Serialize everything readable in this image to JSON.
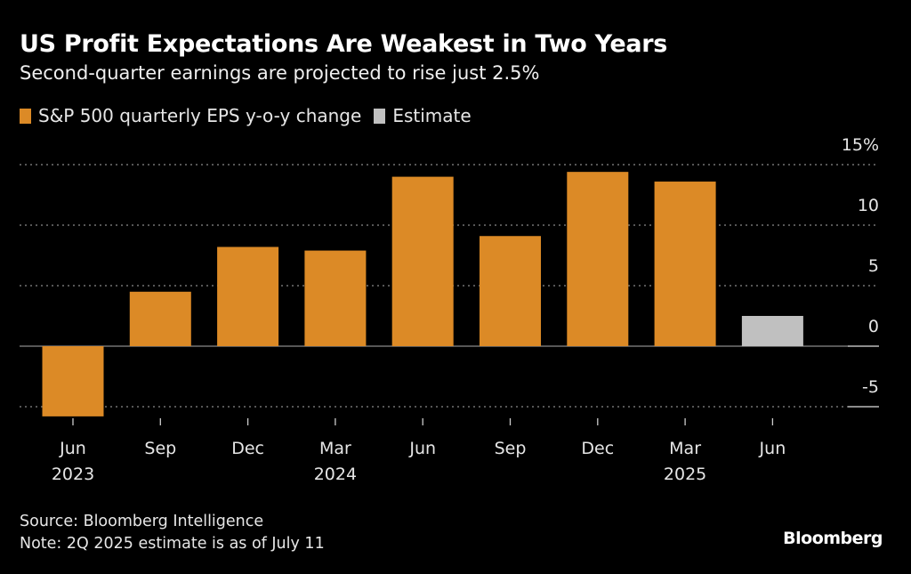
{
  "header": {
    "title": "US Profit Expectations Are Weakest in Two Years",
    "subtitle": "Second-quarter earnings are projected to rise just 2.5%"
  },
  "legend": [
    {
      "label": "S&P 500 quarterly EPS y-o-y change",
      "color": "#dc8a26"
    },
    {
      "label": "Estimate",
      "color": "#c0c0c0"
    }
  ],
  "footer": {
    "source": "Source: Bloomberg Intelligence",
    "note": "Note: 2Q 2025 estimate is as of July 11",
    "brand": "Bloomberg"
  },
  "chart_data": {
    "type": "bar",
    "title": "US Profit Expectations Are Weakest in Two Years",
    "subtitle": "Second-quarter earnings are projected to rise just 2.5%",
    "xlabel": "",
    "ylabel": "",
    "categories": [
      "Jun 2023",
      "Sep 2023",
      "Dec 2023",
      "Mar 2024",
      "Jun 2024",
      "Sep 2024",
      "Dec 2024",
      "Mar 2025",
      "Jun 2025"
    ],
    "x_tick_labels": [
      {
        "month": "Jun",
        "year": "2023"
      },
      {
        "month": "Sep",
        "year": ""
      },
      {
        "month": "Dec",
        "year": ""
      },
      {
        "month": "Mar",
        "year": "2024"
      },
      {
        "month": "Jun",
        "year": ""
      },
      {
        "month": "Sep",
        "year": ""
      },
      {
        "month": "Dec",
        "year": ""
      },
      {
        "month": "Mar",
        "year": "2025"
      },
      {
        "month": "Jun",
        "year": ""
      }
    ],
    "series": [
      {
        "name": "S&P 500 quarterly EPS y-o-y change",
        "values": [
          -5.8,
          4.5,
          8.2,
          7.9,
          14.0,
          9.1,
          14.4,
          13.6,
          null
        ],
        "color": "#dc8a26"
      },
      {
        "name": "Estimate",
        "values": [
          null,
          null,
          null,
          null,
          null,
          null,
          null,
          null,
          2.5
        ],
        "color": "#c0c0c0"
      }
    ],
    "ylim": [
      -5,
      15
    ],
    "y_ticks": [
      15,
      10,
      5,
      0,
      -5
    ],
    "y_tick_labels": [
      "15%",
      "10",
      "5",
      "0",
      "-5"
    ],
    "y_axis_side": "right",
    "grid": true,
    "legend_position": "top-left"
  }
}
